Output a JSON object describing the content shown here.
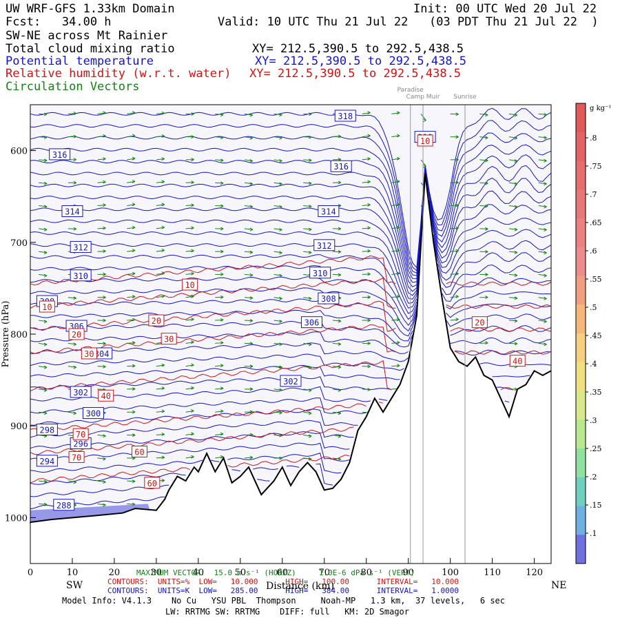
{
  "header": {
    "domain": "UW WRF-GFS 1.33km Domain",
    "init": "Init: 00 UTC Wed 20 Jul 22",
    "fcst": "Fcst:   34.00 h",
    "valid": "Valid: 10 UTC Thu 21 Jul 22   (03 PDT Thu 21 Jul 22  )",
    "section": "SW-NE across Mt Rainier",
    "line_cloud": "Total cloud mixing ratio",
    "line_cloud_xy": "XY= 212.5,390.5 to 292.5,438.5",
    "line_theta": "Potential temperature",
    "line_theta_xy": "XY= 212.5,390.5 to 292.5,438.5",
    "line_rh": "Relative humidity (w.r.t. water)",
    "line_rh_xy": "XY= 212.5,390.5 to 292.5,438.5",
    "line_circ": "Circulation Vectors"
  },
  "landmarks": [
    {
      "label": "Paradise",
      "x": 90.5
    },
    {
      "label": "Camp Muir",
      "x": 93.5
    },
    {
      "label": "Sunrise",
      "x": 103.5
    }
  ],
  "footer": {
    "max_vector": "MAXIMUM VECTOR:  15.0 m s⁻¹ (HORIZ)     1.0E-6 dPa s⁻¹ (VERT)",
    "rh_contours": "CONTOURS:  UNITS=%  LOW=   10.000      HIGH=   100.00      INTERVAL=   10.000",
    "th_contours": "CONTOURS:  UNITS=K  LOW=   285.00      HIGH=   384.00      INTERVAL=   1.0000",
    "xlabel": "Distance (km)",
    "left_dir": "SW",
    "right_dir": "NE",
    "model1": "Model Info: V4.1.3    No Cu   YSU PBL  Thompson     Noah-MP   1.3 km,  37 levels,   6 sec",
    "model2": "LW: RRTMG SW: RRTMG    DIFF: full   KM: 2D Smagor"
  },
  "colorbar": {
    "unit": "g kg⁻¹",
    "ticks": [
      ".8",
      ".75",
      ".7",
      ".65",
      ".6",
      ".55",
      ".5",
      ".45",
      ".4",
      ".35",
      ".3",
      ".25",
      ".2",
      ".15",
      ".1"
    ]
  },
  "chart_data": {
    "type": "line",
    "title": "SW-NE across Mt Rainier",
    "xlabel": "Distance (km)",
    "ylabel": "Pressure (hPa)",
    "xlim": [
      0,
      124
    ],
    "ylim": [
      1050,
      550
    ],
    "x_ticks": [
      0,
      10,
      20,
      30,
      40,
      50,
      60,
      70,
      80,
      90,
      100,
      110,
      120
    ],
    "y_ticks": [
      600,
      700,
      800,
      900,
      1000
    ],
    "y_tick_labels": [
      "600",
      "700",
      "800",
      "900",
      "1000"
    ],
    "terrain": [
      [
        0,
        1005
      ],
      [
        5,
        1002
      ],
      [
        15,
        998
      ],
      [
        22,
        995
      ],
      [
        25,
        990
      ],
      [
        30,
        992
      ],
      [
        32,
        980
      ],
      [
        33,
        970
      ],
      [
        35,
        955
      ],
      [
        37,
        960
      ],
      [
        39,
        945
      ],
      [
        40,
        950
      ],
      [
        42,
        930
      ],
      [
        44,
        950
      ],
      [
        46,
        935
      ],
      [
        48,
        962
      ],
      [
        50,
        955
      ],
      [
        52,
        945
      ],
      [
        55,
        975
      ],
      [
        58,
        960
      ],
      [
        60,
        945
      ],
      [
        62,
        965
      ],
      [
        64,
        950
      ],
      [
        66,
        940
      ],
      [
        68,
        950
      ],
      [
        70,
        970
      ],
      [
        72,
        968
      ],
      [
        74,
        958
      ],
      [
        76,
        940
      ],
      [
        78,
        905
      ],
      [
        80,
        890
      ],
      [
        82,
        870
      ],
      [
        84,
        885
      ],
      [
        86,
        870
      ],
      [
        88,
        855
      ],
      [
        90,
        830
      ],
      [
        92,
        780
      ],
      [
        94,
        625
      ],
      [
        96,
        700
      ],
      [
        98,
        760
      ],
      [
        100,
        815
      ],
      [
        102,
        830
      ],
      [
        104,
        835
      ],
      [
        106,
        825
      ],
      [
        108,
        845
      ],
      [
        110,
        850
      ],
      [
        112,
        870
      ],
      [
        114,
        890
      ],
      [
        116,
        860
      ],
      [
        118,
        855
      ],
      [
        120,
        840
      ],
      [
        122,
        845
      ],
      [
        124,
        840
      ]
    ],
    "theta_labels": [
      {
        "v": "318",
        "x": 75,
        "y": 562
      },
      {
        "v": "318",
        "x": 94,
        "y": 585
      },
      {
        "v": "316",
        "x": 7,
        "y": 604
      },
      {
        "v": "316",
        "x": 74,
        "y": 617
      },
      {
        "v": "314",
        "x": 10,
        "y": 666
      },
      {
        "v": "314",
        "x": 71,
        "y": 666
      },
      {
        "v": "312",
        "x": 12,
        "y": 705
      },
      {
        "v": "312",
        "x": 70,
        "y": 703
      },
      {
        "v": "310",
        "x": 12,
        "y": 736
      },
      {
        "v": "310",
        "x": 69,
        "y": 733
      },
      {
        "v": "308",
        "x": 4,
        "y": 764
      },
      {
        "v": "308",
        "x": 71,
        "y": 761
      },
      {
        "v": "306",
        "x": 11,
        "y": 791
      },
      {
        "v": "306",
        "x": 67,
        "y": 787
      },
      {
        "v": "304",
        "x": 17,
        "y": 821
      },
      {
        "v": "302",
        "x": 12,
        "y": 863
      },
      {
        "v": "302",
        "x": 62,
        "y": 851
      },
      {
        "v": "300",
        "x": 15,
        "y": 886
      },
      {
        "v": "298",
        "x": 4,
        "y": 904
      },
      {
        "v": "296",
        "x": 12,
        "y": 919
      },
      {
        "v": "294",
        "x": 4,
        "y": 938
      },
      {
        "v": "288",
        "x": 8,
        "y": 986
      }
    ],
    "rh_labels": [
      {
        "v": "10",
        "x": 94,
        "y": 589
      },
      {
        "v": "10",
        "x": 38,
        "y": 746
      },
      {
        "v": "10",
        "x": 4,
        "y": 770
      },
      {
        "v": "20",
        "x": 30,
        "y": 785
      },
      {
        "v": "20",
        "x": 11,
        "y": 800
      },
      {
        "v": "20",
        "x": 107,
        "y": 787
      },
      {
        "v": "30",
        "x": 33,
        "y": 805
      },
      {
        "v": "30",
        "x": 14,
        "y": 821
      },
      {
        "v": "40",
        "x": 18,
        "y": 867
      },
      {
        "v": "40",
        "x": 116,
        "y": 829
      },
      {
        "v": "70",
        "x": 12,
        "y": 909
      },
      {
        "v": "70",
        "x": 11,
        "y": 934
      },
      {
        "v": "60",
        "x": 26,
        "y": 928
      },
      {
        "v": "60",
        "x": 29,
        "y": 962
      }
    ],
    "series": [
      {
        "name": "Potential temperature (K)",
        "color": "#1414c8"
      },
      {
        "name": "Relative humidity (%)",
        "color": "#d21414"
      },
      {
        "name": "Circulation Vectors",
        "color": "#148214"
      },
      {
        "name": "Total cloud mixing ratio (g kg⁻¹)",
        "color": "#7070e0"
      }
    ]
  }
}
